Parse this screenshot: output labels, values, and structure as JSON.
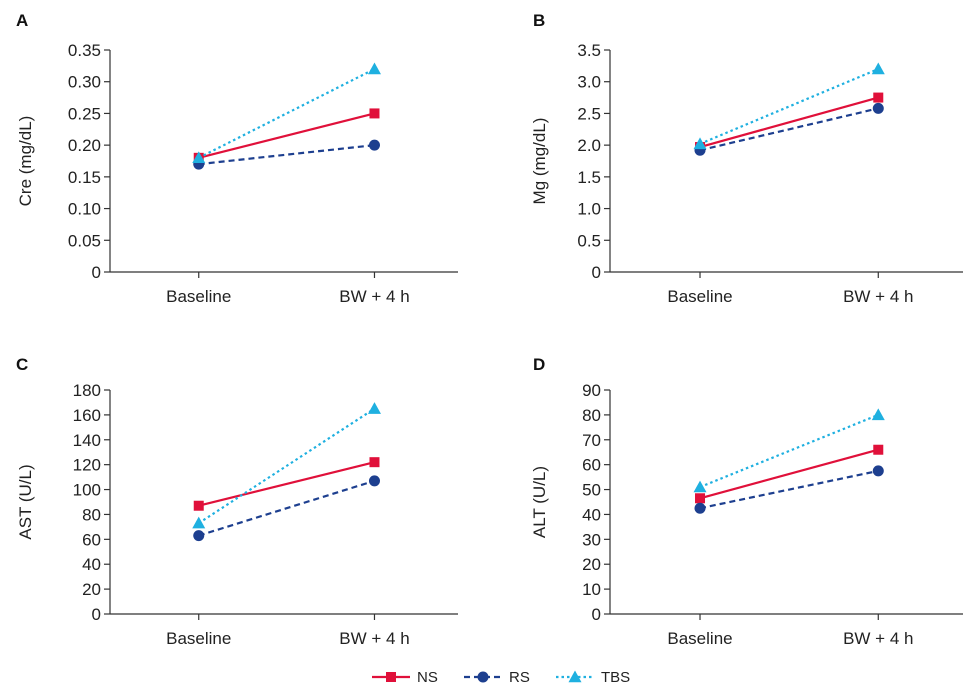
{
  "colors": {
    "NS": "#e0103a",
    "RS": "#1d3f8f",
    "TBS": "#1fb0e0"
  },
  "legend": [
    {
      "label": "NS",
      "series": "NS"
    },
    {
      "label": "RS",
      "series": "RS"
    },
    {
      "label": "TBS",
      "series": "TBS"
    }
  ],
  "chart_data": [
    {
      "type": "line",
      "panel": "A",
      "title": "",
      "ylabel": "Cre (mg/dL)",
      "xlabel": "",
      "categories": [
        "Baseline",
        "BW + 4 h"
      ],
      "ylim": [
        0,
        0.35
      ],
      "yticks": [
        "0",
        "0.05",
        "0.10",
        "0.15",
        "0.20",
        "0.25",
        "0.30",
        "0.35"
      ],
      "ytick_values": [
        0,
        0.05,
        0.1,
        0.15,
        0.2,
        0.25,
        0.3,
        0.35
      ],
      "series": [
        {
          "name": "NS",
          "values": [
            0.18,
            0.25
          ]
        },
        {
          "name": "RS",
          "values": [
            0.17,
            0.2
          ]
        },
        {
          "name": "TBS",
          "values": [
            0.18,
            0.32
          ]
        }
      ]
    },
    {
      "type": "line",
      "panel": "B",
      "title": "",
      "ylabel": "Mg (mg/dL)",
      "xlabel": "",
      "categories": [
        "Baseline",
        "BW + 4 h"
      ],
      "ylim": [
        0,
        3.5
      ],
      "yticks": [
        "0",
        "0.5",
        "1.0",
        "1.5",
        "2.0",
        "2.5",
        "3.0",
        "3.5"
      ],
      "ytick_values": [
        0,
        0.5,
        1.0,
        1.5,
        2.0,
        2.5,
        3.0,
        3.5
      ],
      "series": [
        {
          "name": "NS",
          "values": [
            1.97,
            2.75
          ]
        },
        {
          "name": "RS",
          "values": [
            1.92,
            2.58
          ]
        },
        {
          "name": "TBS",
          "values": [
            2.02,
            3.2
          ]
        }
      ]
    },
    {
      "type": "line",
      "panel": "C",
      "title": "",
      "ylabel": "AST (U/L)",
      "xlabel": "",
      "categories": [
        "Baseline",
        "BW + 4 h"
      ],
      "ylim": [
        0,
        180
      ],
      "yticks": [
        "0",
        "20",
        "40",
        "60",
        "80",
        "100",
        "120",
        "140",
        "160",
        "180"
      ],
      "ytick_values": [
        0,
        20,
        40,
        60,
        80,
        100,
        120,
        140,
        160,
        180
      ],
      "series": [
        {
          "name": "NS",
          "values": [
            87,
            122
          ]
        },
        {
          "name": "RS",
          "values": [
            63,
            107
          ]
        },
        {
          "name": "TBS",
          "values": [
            73,
            165
          ]
        }
      ]
    },
    {
      "type": "line",
      "panel": "D",
      "title": "",
      "ylabel": "ALT (U/L)",
      "xlabel": "",
      "categories": [
        "Baseline",
        "BW + 4 h"
      ],
      "ylim": [
        0,
        90
      ],
      "yticks": [
        "0",
        "10",
        "20",
        "30",
        "40",
        "50",
        "60",
        "70",
        "80",
        "90"
      ],
      "ytick_values": [
        0,
        10,
        20,
        30,
        40,
        50,
        60,
        70,
        80,
        90
      ],
      "series": [
        {
          "name": "NS",
          "values": [
            46.5,
            66
          ]
        },
        {
          "name": "RS",
          "values": [
            42.5,
            57.5
          ]
        },
        {
          "name": "TBS",
          "values": [
            51,
            80
          ]
        }
      ]
    }
  ]
}
